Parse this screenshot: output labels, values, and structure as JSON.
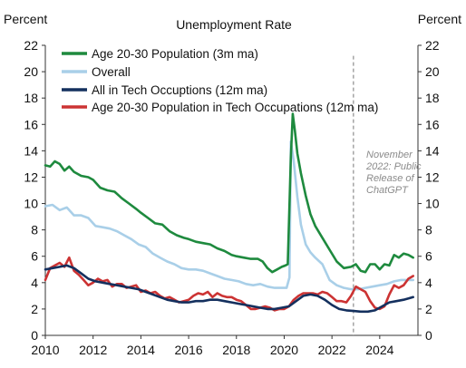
{
  "chart_data": {
    "type": "line",
    "title": "Unemployment Rate",
    "ylabel_left": "Percent",
    "ylabel_right": "Percent",
    "xlim": [
      2010,
      2025.6
    ],
    "ylim": [
      0,
      22
    ],
    "x_ticks": [
      2010,
      2012,
      2014,
      2016,
      2018,
      2020,
      2022,
      2024
    ],
    "y_ticks": [
      0,
      2,
      4,
      6,
      8,
      10,
      12,
      14,
      16,
      18,
      20,
      22
    ],
    "grid": false,
    "legend_position": "top-left",
    "annotation": {
      "x": 2022.9,
      "lines": [
        "November",
        "2022: Public",
        "Release of",
        "ChatGPT"
      ]
    },
    "series": [
      {
        "name": "Age 20-30 Population (3m ma)",
        "color": "#1e8a3e",
        "points": [
          [
            2010,
            12.9
          ],
          [
            2010.2,
            12.8
          ],
          [
            2010.4,
            13.2
          ],
          [
            2010.6,
            13.0
          ],
          [
            2010.8,
            12.5
          ],
          [
            2011.0,
            12.8
          ],
          [
            2011.2,
            12.4
          ],
          [
            2011.5,
            12.1
          ],
          [
            2011.8,
            12.0
          ],
          [
            2012.0,
            11.8
          ],
          [
            2012.3,
            11.2
          ],
          [
            2012.6,
            11.0
          ],
          [
            2012.9,
            10.9
          ],
          [
            2013.2,
            10.4
          ],
          [
            2013.5,
            10.0
          ],
          [
            2013.8,
            9.6
          ],
          [
            2014.0,
            9.3
          ],
          [
            2014.3,
            8.9
          ],
          [
            2014.6,
            8.5
          ],
          [
            2014.9,
            8.4
          ],
          [
            2015.2,
            7.9
          ],
          [
            2015.5,
            7.6
          ],
          [
            2015.8,
            7.4
          ],
          [
            2016.0,
            7.3
          ],
          [
            2016.3,
            7.1
          ],
          [
            2016.6,
            7.0
          ],
          [
            2016.9,
            6.9
          ],
          [
            2017.2,
            6.6
          ],
          [
            2017.5,
            6.4
          ],
          [
            2017.8,
            6.1
          ],
          [
            2018.0,
            6.0
          ],
          [
            2018.3,
            5.9
          ],
          [
            2018.6,
            5.8
          ],
          [
            2018.9,
            5.8
          ],
          [
            2019.1,
            5.6
          ],
          [
            2019.3,
            5.1
          ],
          [
            2019.5,
            4.8
          ],
          [
            2019.7,
            5.0
          ],
          [
            2019.9,
            5.2
          ],
          [
            2020.05,
            5.3
          ],
          [
            2020.15,
            5.4
          ],
          [
            2020.28,
            13.5
          ],
          [
            2020.36,
            16.8
          ],
          [
            2020.45,
            15.5
          ],
          [
            2020.55,
            13.8
          ],
          [
            2020.7,
            12.3
          ],
          [
            2020.9,
            10.6
          ],
          [
            2021.1,
            9.2
          ],
          [
            2021.3,
            8.3
          ],
          [
            2021.6,
            7.4
          ],
          [
            2021.9,
            6.5
          ],
          [
            2022.2,
            5.6
          ],
          [
            2022.5,
            5.1
          ],
          [
            2022.8,
            5.2
          ],
          [
            2023.0,
            5.4
          ],
          [
            2023.2,
            4.9
          ],
          [
            2023.4,
            4.8
          ],
          [
            2023.6,
            5.4
          ],
          [
            2023.8,
            5.4
          ],
          [
            2024.0,
            5.0
          ],
          [
            2024.2,
            5.4
          ],
          [
            2024.4,
            5.3
          ],
          [
            2024.6,
            6.1
          ],
          [
            2024.8,
            5.9
          ],
          [
            2025.0,
            6.2
          ],
          [
            2025.2,
            6.1
          ],
          [
            2025.4,
            5.9
          ]
        ]
      },
      {
        "name": "Overall",
        "color": "#a9cfe8",
        "points": [
          [
            2010,
            9.8
          ],
          [
            2010.3,
            9.9
          ],
          [
            2010.6,
            9.5
          ],
          [
            2010.9,
            9.7
          ],
          [
            2011.2,
            9.1
          ],
          [
            2011.5,
            9.1
          ],
          [
            2011.8,
            8.9
          ],
          [
            2012.1,
            8.3
          ],
          [
            2012.4,
            8.2
          ],
          [
            2012.7,
            8.1
          ],
          [
            2013.0,
            7.9
          ],
          [
            2013.3,
            7.6
          ],
          [
            2013.6,
            7.3
          ],
          [
            2013.9,
            6.9
          ],
          [
            2014.2,
            6.7
          ],
          [
            2014.5,
            6.2
          ],
          [
            2014.8,
            5.9
          ],
          [
            2015.1,
            5.6
          ],
          [
            2015.4,
            5.4
          ],
          [
            2015.7,
            5.1
          ],
          [
            2016.0,
            5.0
          ],
          [
            2016.3,
            5.0
          ],
          [
            2016.6,
            4.9
          ],
          [
            2016.9,
            4.7
          ],
          [
            2017.2,
            4.5
          ],
          [
            2017.5,
            4.3
          ],
          [
            2017.8,
            4.2
          ],
          [
            2018.1,
            4.1
          ],
          [
            2018.4,
            3.9
          ],
          [
            2018.7,
            3.8
          ],
          [
            2019.0,
            3.9
          ],
          [
            2019.3,
            3.7
          ],
          [
            2019.6,
            3.6
          ],
          [
            2019.9,
            3.6
          ],
          [
            2020.1,
            3.6
          ],
          [
            2020.22,
            4.4
          ],
          [
            2020.28,
            14.7
          ],
          [
            2020.4,
            13.2
          ],
          [
            2020.55,
            10.5
          ],
          [
            2020.7,
            8.4
          ],
          [
            2020.9,
            6.9
          ],
          [
            2021.1,
            6.3
          ],
          [
            2021.3,
            5.9
          ],
          [
            2021.6,
            5.4
          ],
          [
            2021.9,
            4.2
          ],
          [
            2022.2,
            3.8
          ],
          [
            2022.5,
            3.6
          ],
          [
            2022.8,
            3.5
          ],
          [
            2023.1,
            3.5
          ],
          [
            2023.4,
            3.6
          ],
          [
            2023.7,
            3.7
          ],
          [
            2024.0,
            3.8
          ],
          [
            2024.3,
            3.9
          ],
          [
            2024.6,
            4.1
          ],
          [
            2024.9,
            4.2
          ],
          [
            2025.2,
            4.2
          ],
          [
            2025.4,
            4.2
          ]
        ]
      },
      {
        "name": "All in Tech Occuptions (12m ma)",
        "color": "#14305e",
        "points": [
          [
            2010,
            5.0
          ],
          [
            2010.3,
            5.1
          ],
          [
            2010.6,
            5.2
          ],
          [
            2010.9,
            5.3
          ],
          [
            2011.2,
            5.1
          ],
          [
            2011.5,
            4.7
          ],
          [
            2011.8,
            4.3
          ],
          [
            2012.1,
            4.1
          ],
          [
            2012.4,
            4.0
          ],
          [
            2012.7,
            3.9
          ],
          [
            2013.0,
            3.8
          ],
          [
            2013.3,
            3.7
          ],
          [
            2013.6,
            3.6
          ],
          [
            2013.9,
            3.5
          ],
          [
            2014.2,
            3.3
          ],
          [
            2014.5,
            3.1
          ],
          [
            2014.8,
            2.9
          ],
          [
            2015.1,
            2.7
          ],
          [
            2015.4,
            2.6
          ],
          [
            2015.7,
            2.5
          ],
          [
            2016.0,
            2.5
          ],
          [
            2016.3,
            2.6
          ],
          [
            2016.6,
            2.6
          ],
          [
            2016.9,
            2.7
          ],
          [
            2017.2,
            2.7
          ],
          [
            2017.5,
            2.6
          ],
          [
            2017.8,
            2.5
          ],
          [
            2018.1,
            2.4
          ],
          [
            2018.4,
            2.3
          ],
          [
            2018.7,
            2.2
          ],
          [
            2019.0,
            2.1
          ],
          [
            2019.3,
            2.0
          ],
          [
            2019.6,
            2.0
          ],
          [
            2019.9,
            2.1
          ],
          [
            2020.2,
            2.2
          ],
          [
            2020.5,
            2.6
          ],
          [
            2020.8,
            3.0
          ],
          [
            2021.1,
            3.1
          ],
          [
            2021.4,
            3.0
          ],
          [
            2021.7,
            2.7
          ],
          [
            2022.0,
            2.3
          ],
          [
            2022.3,
            2.0
          ],
          [
            2022.6,
            1.9
          ],
          [
            2022.9,
            1.85
          ],
          [
            2023.2,
            1.8
          ],
          [
            2023.5,
            1.8
          ],
          [
            2023.8,
            1.9
          ],
          [
            2024.1,
            2.2
          ],
          [
            2024.4,
            2.5
          ],
          [
            2024.7,
            2.6
          ],
          [
            2025.0,
            2.7
          ],
          [
            2025.2,
            2.8
          ],
          [
            2025.4,
            2.9
          ]
        ]
      },
      {
        "name": "Age 20-30 Population in Tech Occupations (12m ma)",
        "color": "#cc3333",
        "points": [
          [
            2010,
            4.2
          ],
          [
            2010.2,
            5.1
          ],
          [
            2010.4,
            5.3
          ],
          [
            2010.6,
            5.5
          ],
          [
            2010.8,
            5.2
          ],
          [
            2011.0,
            5.9
          ],
          [
            2011.2,
            4.9
          ],
          [
            2011.4,
            4.6
          ],
          [
            2011.6,
            4.2
          ],
          [
            2011.8,
            3.8
          ],
          [
            2012.0,
            4.0
          ],
          [
            2012.2,
            4.3
          ],
          [
            2012.4,
            4.1
          ],
          [
            2012.6,
            4.2
          ],
          [
            2012.8,
            3.7
          ],
          [
            2013.0,
            3.9
          ],
          [
            2013.2,
            3.9
          ],
          [
            2013.4,
            3.6
          ],
          [
            2013.6,
            3.7
          ],
          [
            2013.8,
            3.8
          ],
          [
            2014.0,
            3.3
          ],
          [
            2014.2,
            3.4
          ],
          [
            2014.4,
            3.2
          ],
          [
            2014.6,
            3.3
          ],
          [
            2014.8,
            3.0
          ],
          [
            2015.0,
            2.8
          ],
          [
            2015.2,
            2.9
          ],
          [
            2015.4,
            2.7
          ],
          [
            2015.6,
            2.5
          ],
          [
            2015.8,
            2.6
          ],
          [
            2016.0,
            2.7
          ],
          [
            2016.2,
            3.0
          ],
          [
            2016.4,
            3.2
          ],
          [
            2016.6,
            3.1
          ],
          [
            2016.8,
            3.3
          ],
          [
            2017.0,
            2.9
          ],
          [
            2017.2,
            3.2
          ],
          [
            2017.4,
            3.0
          ],
          [
            2017.6,
            2.9
          ],
          [
            2017.8,
            2.9
          ],
          [
            2018.0,
            2.7
          ],
          [
            2018.2,
            2.6
          ],
          [
            2018.4,
            2.3
          ],
          [
            2018.6,
            2.0
          ],
          [
            2018.8,
            2.0
          ],
          [
            2019.0,
            2.1
          ],
          [
            2019.2,
            2.2
          ],
          [
            2019.4,
            2.1
          ],
          [
            2019.6,
            1.9
          ],
          [
            2019.8,
            2.0
          ],
          [
            2020.0,
            2.0
          ],
          [
            2020.2,
            2.2
          ],
          [
            2020.4,
            2.7
          ],
          [
            2020.6,
            3.0
          ],
          [
            2020.8,
            3.2
          ],
          [
            2021.0,
            3.2
          ],
          [
            2021.2,
            3.2
          ],
          [
            2021.4,
            3.1
          ],
          [
            2021.6,
            3.3
          ],
          [
            2021.8,
            3.2
          ],
          [
            2022.0,
            2.9
          ],
          [
            2022.2,
            2.6
          ],
          [
            2022.4,
            2.6
          ],
          [
            2022.6,
            2.5
          ],
          [
            2022.8,
            3.0
          ],
          [
            2023.0,
            3.7
          ],
          [
            2023.2,
            3.5
          ],
          [
            2023.4,
            3.3
          ],
          [
            2023.6,
            2.6
          ],
          [
            2023.8,
            2.1
          ],
          [
            2024.0,
            2.0
          ],
          [
            2024.2,
            2.2
          ],
          [
            2024.4,
            3.1
          ],
          [
            2024.6,
            3.8
          ],
          [
            2024.8,
            3.6
          ],
          [
            2025.0,
            3.8
          ],
          [
            2025.2,
            4.3
          ],
          [
            2025.4,
            4.5
          ]
        ]
      }
    ]
  }
}
